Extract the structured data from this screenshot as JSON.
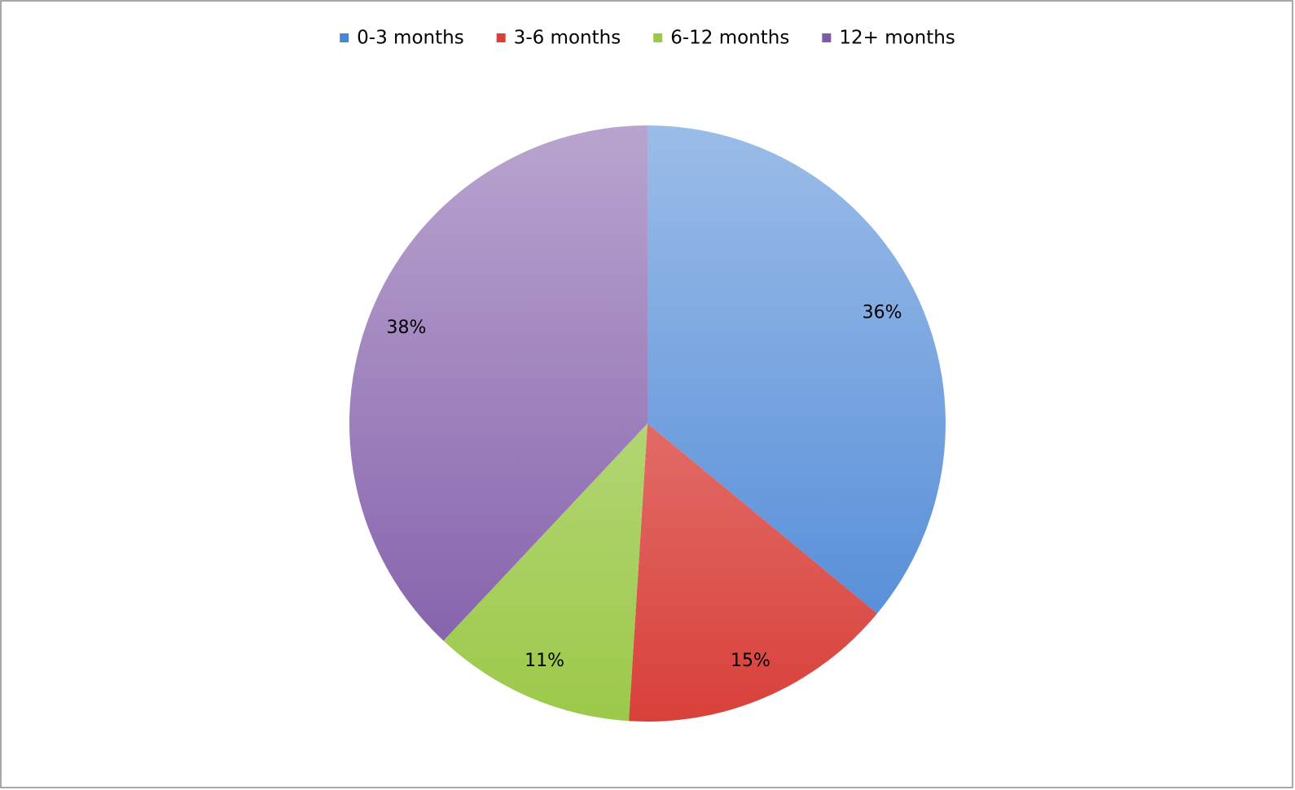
{
  "chart_data": {
    "type": "pie",
    "categories": [
      "0-3 months",
      "3-6 months",
      "6-12 months",
      "12+ months"
    ],
    "values": [
      36,
      15,
      11,
      38
    ],
    "value_labels": [
      "36%",
      "15%",
      "11%",
      "38%"
    ],
    "colors": [
      "#4a86d6",
      "#d9403a",
      "#9cc94a",
      "#7f5aa8"
    ],
    "legend": "top"
  }
}
